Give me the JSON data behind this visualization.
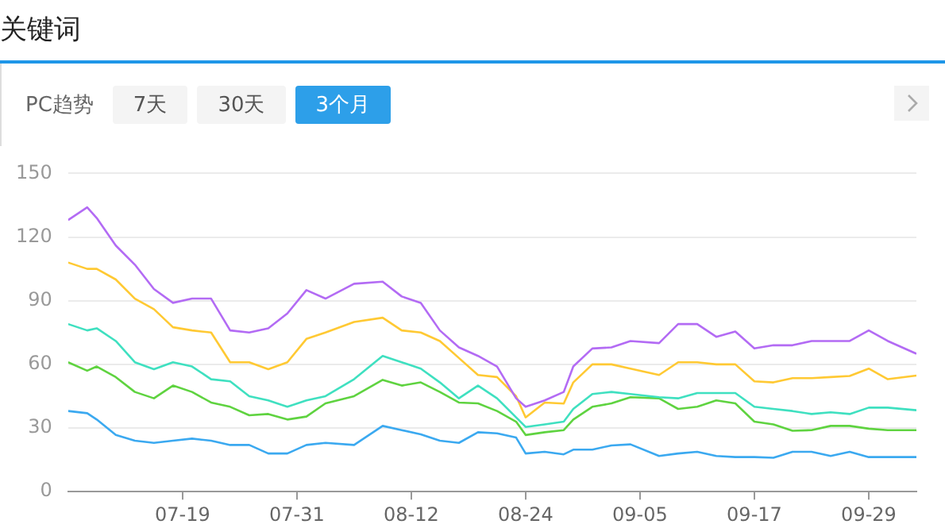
{
  "chart_data": {
    "type": "line",
    "title": "关键词",
    "subtitle": "PC趋势",
    "annotations": [
      "7天",
      "30天",
      "3个月"
    ],
    "x": [
      "--07-07",
      "--07-09",
      "--07-10",
      "--07-12",
      "--07-14",
      "--07-16",
      "--07-18",
      "--07-20",
      "--07-22",
      "--07-24",
      "--07-26",
      "--07-28",
      "--07-30",
      "--08-01",
      "--08-03",
      "--08-06",
      "--08-09",
      "--08-11",
      "--08-13",
      "--08-15",
      "--08-17",
      "--08-19",
      "--08-21",
      "--08-23",
      "--08-24",
      "--08-26",
      "--08-28",
      "--08-29",
      "--08-31",
      "--09-02",
      "--09-04",
      "--09-07",
      "--09-09",
      "--09-11",
      "--09-13",
      "--09-15",
      "--09-17",
      "--09-19",
      "--09-21",
      "--09-23",
      "--09-25",
      "--09-27",
      "--09-29",
      "--10-01",
      "--10-04"
    ],
    "series": [
      {
        "color": "#b36bf4",
        "values": [
          128,
          134,
          129,
          116,
          107,
          95.5,
          89,
          91,
          91,
          76,
          75,
          77,
          84,
          95,
          91,
          98,
          99,
          92,
          89,
          76,
          68,
          64,
          59,
          44,
          40,
          43,
          47,
          59,
          67.5,
          68,
          71,
          70,
          79,
          79,
          73,
          75.5,
          67.5,
          69,
          69,
          71,
          71,
          71,
          76,
          71,
          65
        ]
      },
      {
        "color": "#ffc933",
        "values": [
          108,
          105,
          105,
          100,
          91,
          86,
          77.5,
          76,
          75,
          61,
          61,
          57.7,
          61,
          72,
          75,
          80,
          82,
          76,
          75,
          71,
          63,
          55,
          54,
          45,
          35,
          42,
          41.5,
          51.5,
          60,
          60,
          58,
          55,
          61,
          61,
          60,
          60,
          52,
          51.5,
          53.5,
          53.5,
          54,
          54.5,
          58,
          53,
          54.7
        ]
      },
      {
        "color": "#3fe0c0",
        "values": [
          79,
          76,
          77,
          71,
          61,
          57.7,
          61,
          59,
          53,
          52,
          45,
          43,
          40,
          43,
          45,
          53,
          64,
          61,
          58,
          51.5,
          44,
          50,
          44,
          35,
          30.5,
          31.7,
          33,
          39,
          46,
          47,
          46,
          44.5,
          44,
          46.5,
          46.5,
          46.5,
          40,
          39,
          38,
          36.6,
          37.4,
          36.6,
          39.6,
          39.6,
          38.4
        ]
      },
      {
        "color": "#5fd340",
        "values": [
          61,
          57,
          59,
          54,
          47,
          44,
          50,
          47,
          42,
          40,
          36,
          36.6,
          34,
          35.4,
          41.6,
          45,
          52.7,
          50,
          51.5,
          47,
          42,
          41.6,
          38,
          33,
          26.7,
          28,
          29,
          34,
          40,
          41.6,
          44.5,
          44,
          39,
          40,
          43,
          41.6,
          33,
          31.7,
          28.7,
          29,
          31,
          31,
          29.7,
          29,
          29
        ]
      },
      {
        "color": "#3ba9f0",
        "values": [
          38,
          37,
          34,
          26.7,
          24,
          23,
          24,
          25,
          24,
          22,
          22,
          18,
          18,
          22,
          23,
          22,
          31,
          29,
          27,
          24,
          23,
          28,
          27.5,
          25.5,
          18,
          18.8,
          17.6,
          19.8,
          19.8,
          21.8,
          22.3,
          16.8,
          18,
          18.8,
          16.8,
          16.3,
          16.3,
          16,
          18.8,
          18.8,
          16.8,
          18.8,
          16.3,
          16.3,
          16.3
        ]
      }
    ],
    "xlim": [
      "--07-07",
      "--10-04"
    ],
    "xticks": [
      {
        "value": "--07-19",
        "label": "07-19"
      },
      {
        "value": "--07-31",
        "label": "07-31"
      },
      {
        "value": "--08-12",
        "label": "08-12"
      },
      {
        "value": "--08-24",
        "label": "08-24"
      },
      {
        "value": "--09-05",
        "label": "09-05"
      },
      {
        "value": "--09-17",
        "label": "09-17"
      },
      {
        "value": "--09-29",
        "label": "09-29"
      }
    ],
    "ylim": [
      0,
      150
    ],
    "yticks": [
      0,
      30,
      60,
      90,
      120,
      150
    ],
    "grid": "y",
    "legend": false,
    "marker": "none",
    "line_style": "solid"
  }
}
